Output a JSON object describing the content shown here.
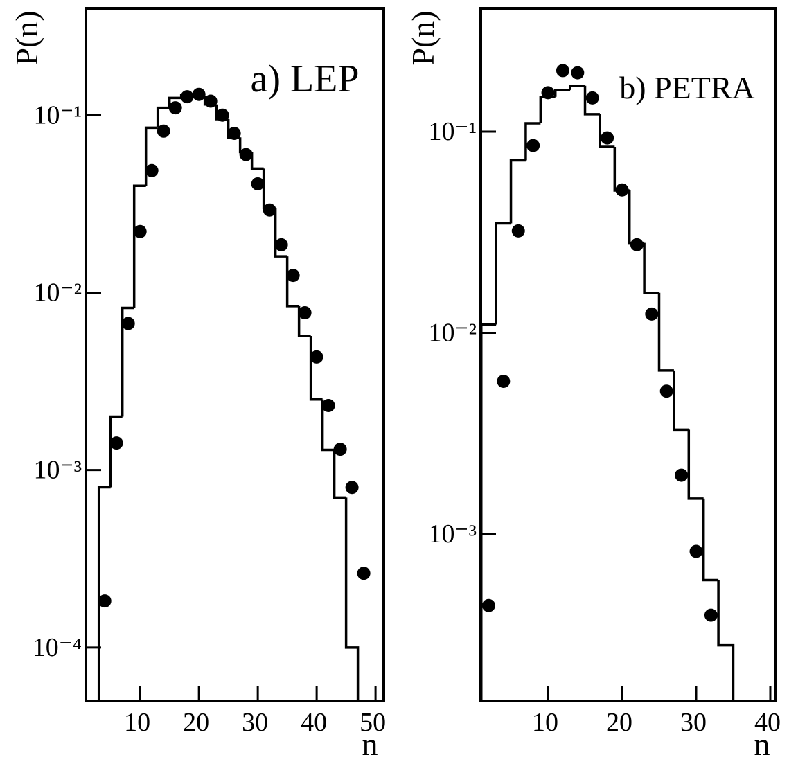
{
  "chart_data": [
    {
      "type": "histogram",
      "title": "a) LEP",
      "xlabel": "n",
      "ylabel": "P(n)",
      "log_y": true,
      "xlim": [
        0.8,
        51.4
      ],
      "ylim": [
        5e-05,
        0.4
      ],
      "xticks": [
        10,
        20,
        30,
        40,
        50
      ],
      "yticks": [
        {
          "value": 0.1,
          "label": "10⁻¹"
        },
        {
          "value": 0.01,
          "label": "10⁻²"
        },
        {
          "value": 0.001,
          "label": "10⁻³"
        },
        {
          "value": 0.0001,
          "label": "10⁻⁴"
        }
      ],
      "color": "#000000",
      "bins": [
        3,
        5,
        7,
        9,
        11,
        13,
        15,
        17,
        19,
        21,
        23,
        25,
        27,
        29,
        31,
        33,
        35,
        37,
        39,
        41,
        43,
        45,
        47
      ],
      "values": [
        0.0008,
        0.002,
        0.0082,
        0.04,
        0.085,
        0.11,
        0.125,
        0.13,
        0.128,
        0.115,
        0.095,
        0.075,
        0.062,
        0.05,
        0.03,
        0.016,
        0.0084,
        0.0057,
        0.0025,
        0.0013,
        0.0007,
        0.0001
      ],
      "overlay": {
        "type": "scatter",
        "color": "#000000",
        "x": [
          4,
          6,
          8,
          10,
          12,
          14,
          16,
          18,
          20,
          22,
          24,
          26,
          28,
          30,
          32,
          34,
          36,
          38,
          40,
          42,
          44,
          46,
          48
        ],
        "values": [
          0.000183,
          0.00142,
          0.0067,
          0.0221,
          0.0487,
          0.0813,
          0.11,
          0.127,
          0.131,
          0.12,
          0.1,
          0.079,
          0.06,
          0.041,
          0.0292,
          0.0186,
          0.0125,
          0.0077,
          0.00434,
          0.00231,
          0.00131,
          0.000798,
          0.000262
        ]
      }
    },
    {
      "type": "histogram",
      "title": "b) PETRA",
      "xlabel": "n",
      "ylabel": "P(n)",
      "log_y": true,
      "xlim": [
        0.93,
        40.75
      ],
      "ylim": [
        0.000148,
        0.41
      ],
      "xticks": [
        10,
        20,
        30,
        40
      ],
      "yticks": [
        {
          "value": 0.1,
          "label": "10⁻¹"
        },
        {
          "value": 0.01,
          "label": "10⁻²"
        },
        {
          "value": 0.001,
          "label": "10⁻³"
        }
      ],
      "color": "#000000",
      "bins": [
        1,
        3,
        5,
        7,
        9,
        11,
        13,
        15,
        17,
        19,
        21,
        23,
        25,
        27,
        29,
        31,
        33,
        35
      ],
      "values": [
        0.011,
        0.035,
        0.072,
        0.11,
        0.149,
        0.161,
        0.169,
        0.122,
        0.084,
        0.051,
        0.028,
        0.0158,
        0.0065,
        0.0033,
        0.0015,
        0.00059,
        0.00028
      ],
      "overlay": {
        "type": "scatter",
        "color": "#000000",
        "x": [
          2,
          4,
          6,
          8,
          10,
          12,
          14,
          16,
          18,
          20,
          22,
          24,
          26,
          28,
          30,
          32
        ],
        "values": [
          0.000441,
          0.00574,
          0.0321,
          0.0853,
          0.156,
          0.201,
          0.196,
          0.147,
          0.093,
          0.0513,
          0.0274,
          0.0124,
          0.00513,
          0.00196,
          0.00082,
          0.000395
        ]
      }
    }
  ]
}
